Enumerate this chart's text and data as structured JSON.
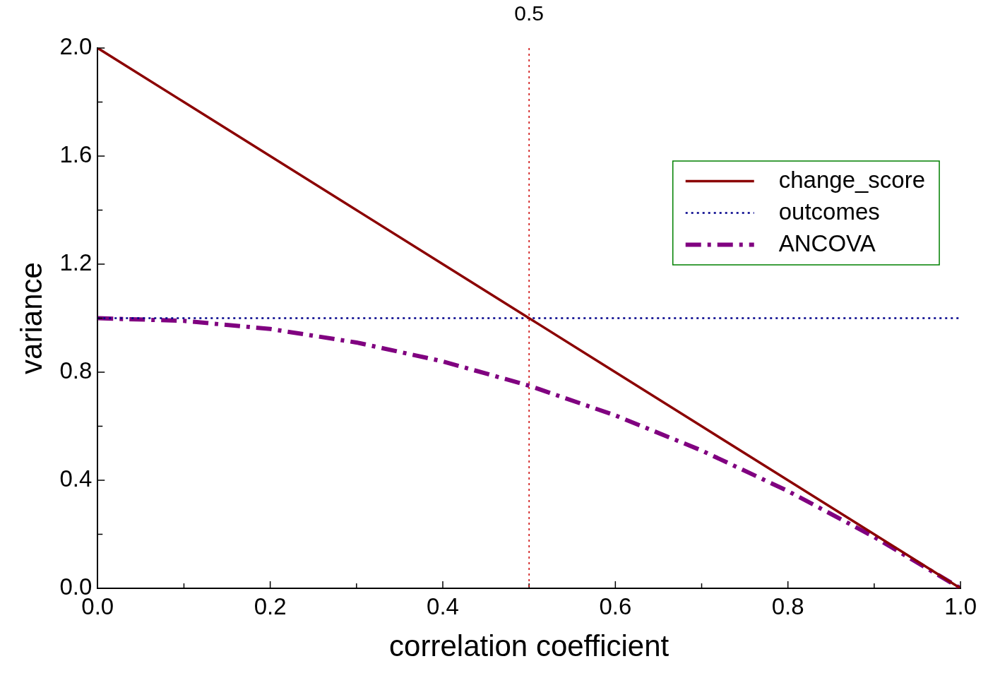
{
  "chart_data": {
    "type": "line",
    "xlabel": "correlation coefficient",
    "ylabel": "variance",
    "xlim": [
      0,
      1
    ],
    "ylim": [
      0,
      2
    ],
    "xticks": [
      {
        "value": 0,
        "label": "0.0"
      },
      {
        "value": 0.1,
        "label": null
      },
      {
        "value": 0.2,
        "label": "0.2"
      },
      {
        "value": 0.3,
        "label": null
      },
      {
        "value": 0.4,
        "label": "0.4"
      },
      {
        "value": 0.5,
        "label": null
      },
      {
        "value": 0.6,
        "label": "0.6"
      },
      {
        "value": 0.7,
        "label": null
      },
      {
        "value": 0.8,
        "label": "0.8"
      },
      {
        "value": 0.9,
        "label": null
      },
      {
        "value": 1,
        "label": "1.0"
      }
    ],
    "yticks": [
      {
        "value": 0,
        "label": "0.0"
      },
      {
        "value": 0.2,
        "label": null
      },
      {
        "value": 0.4,
        "label": "0.4"
      },
      {
        "value": 0.6,
        "label": null
      },
      {
        "value": 0.8,
        "label": "0.8"
      },
      {
        "value": 1,
        "label": null
      },
      {
        "value": 1.2,
        "label": "1.2"
      },
      {
        "value": 1.4,
        "label": null
      },
      {
        "value": 1.6,
        "label": "1.6"
      },
      {
        "value": 1.8,
        "label": null
      },
      {
        "value": 2,
        "label": "2.0"
      }
    ],
    "x": [
      0,
      0.1,
      0.2,
      0.3,
      0.4,
      0.5,
      0.6,
      0.7,
      0.8,
      0.9,
      1
    ],
    "series": [
      {
        "name": "change_score",
        "color": "#8b0000",
        "line_style": "solid",
        "values": [
          2,
          1.8,
          1.6,
          1.4,
          1.2,
          1,
          0.8,
          0.6,
          0.4,
          0.2,
          0
        ]
      },
      {
        "name": "outcomes",
        "color": "#00008b",
        "line_style": "dotted",
        "values": [
          1,
          1,
          1,
          1,
          1,
          1,
          1,
          1,
          1,
          1,
          1
        ]
      },
      {
        "name": "ANCOVA",
        "color": "#800080",
        "line_style": "dashed",
        "values": [
          1,
          0.99,
          0.96,
          0.91,
          0.84,
          0.75,
          0.64,
          0.51,
          0.36,
          0.19,
          0
        ]
      }
    ],
    "ref_lines": [
      {
        "axis": "x",
        "value": 0.5,
        "label": "0.5",
        "color": "#cc0000",
        "line_style": "dotted"
      }
    ],
    "legend": "top right",
    "grid": false,
    "marker": "none"
  }
}
